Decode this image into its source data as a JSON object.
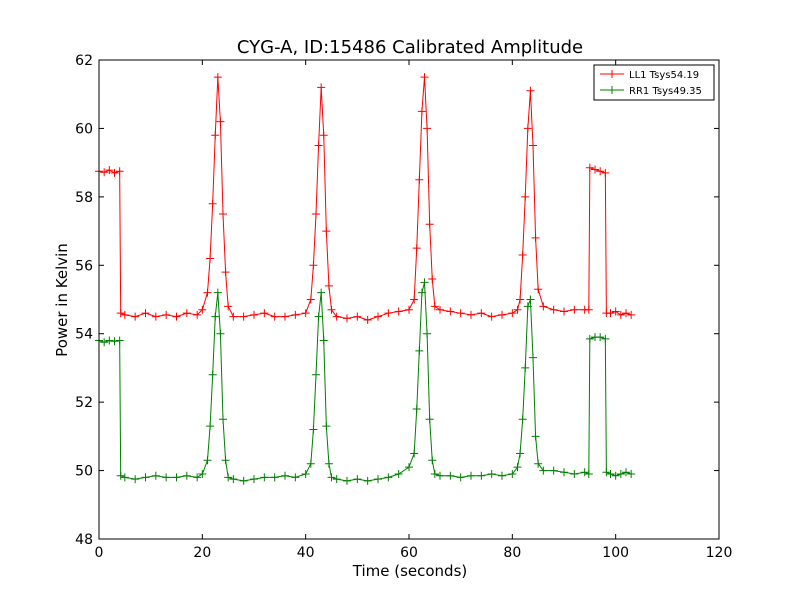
{
  "chart_data": {
    "type": "line",
    "title": "CYG-A, ID:15486 Calibrated Amplitude",
    "xlabel": "Time (seconds)",
    "ylabel": "Power in Kelvin",
    "xlim": [
      0,
      120
    ],
    "ylim": [
      48,
      62
    ],
    "xticks": [
      0,
      20,
      40,
      60,
      80,
      100,
      120
    ],
    "yticks": [
      48,
      50,
      52,
      54,
      56,
      58,
      60,
      62
    ],
    "grid": false,
    "legend": "top-right",
    "marker": "+",
    "series": [
      {
        "name": "LL1 Tsys54.19",
        "color": "#ff0000",
        "x": [
          0,
          1,
          2,
          3,
          4,
          4.2,
          5,
          7,
          9,
          11,
          13,
          15,
          17,
          19,
          20,
          21,
          21.5,
          22,
          22.5,
          23,
          23.5,
          24,
          24.5,
          25,
          26,
          28,
          30,
          32,
          34,
          36,
          38,
          40,
          41,
          41.5,
          42,
          42.5,
          43,
          43.5,
          44,
          44.5,
          45,
          46,
          48,
          50,
          52,
          54,
          56,
          58,
          60,
          61,
          61.5,
          62,
          62.5,
          63,
          63.5,
          64,
          64.5,
          65,
          66,
          68,
          70,
          72,
          74,
          76,
          78,
          80,
          81,
          81.5,
          82,
          82.5,
          83,
          83.5,
          84,
          84.5,
          85,
          86,
          88,
          90,
          92,
          94,
          94.8,
          95,
          96,
          97,
          98,
          98.2,
          99,
          100,
          101,
          102,
          103
        ],
        "values": [
          58.75,
          58.72,
          58.78,
          58.7,
          58.75,
          54.6,
          54.55,
          54.5,
          54.6,
          54.5,
          54.55,
          54.5,
          54.6,
          54.55,
          54.7,
          55.2,
          56.2,
          57.8,
          59.8,
          61.5,
          60.2,
          57.5,
          55.8,
          54.8,
          54.5,
          54.5,
          54.55,
          54.6,
          54.5,
          54.5,
          54.55,
          54.6,
          55.0,
          56.0,
          57.5,
          59.5,
          61.2,
          59.8,
          57.0,
          55.4,
          54.7,
          54.5,
          54.45,
          54.5,
          54.4,
          54.5,
          54.6,
          54.65,
          54.7,
          55.0,
          56.5,
          58.5,
          60.5,
          61.5,
          60.0,
          57.2,
          55.6,
          54.8,
          54.7,
          54.65,
          54.6,
          54.55,
          54.6,
          54.5,
          54.55,
          54.6,
          54.7,
          55.0,
          56.3,
          58.0,
          60.0,
          61.1,
          59.5,
          56.8,
          55.3,
          54.8,
          54.7,
          54.65,
          54.7,
          54.7,
          54.7,
          58.85,
          58.8,
          58.75,
          58.7,
          54.6,
          54.6,
          54.65,
          54.55,
          54.6,
          54.55
        ]
      },
      {
        "name": "RR1 Tsys49.35",
        "color": "#007f00",
        "x": [
          0,
          1,
          2,
          3,
          4,
          4.2,
          5,
          7,
          9,
          11,
          13,
          15,
          17,
          19,
          20,
          21,
          21.5,
          22,
          22.5,
          23,
          23.5,
          24,
          24.5,
          25,
          26,
          28,
          30,
          32,
          34,
          36,
          38,
          40,
          41,
          41.5,
          42,
          42.5,
          43,
          43.5,
          44,
          44.5,
          45,
          46,
          48,
          50,
          52,
          54,
          56,
          58,
          60,
          61,
          61.5,
          62,
          62.5,
          63,
          63.5,
          64,
          64.5,
          65,
          66,
          68,
          70,
          72,
          74,
          76,
          78,
          80,
          81,
          81.5,
          82,
          82.5,
          83,
          83.5,
          84,
          84.5,
          85,
          86,
          88,
          90,
          92,
          94,
          94.8,
          95,
          96,
          97,
          98,
          98.2,
          99,
          100,
          101,
          102,
          103
        ],
        "values": [
          53.8,
          53.75,
          53.8,
          53.78,
          53.8,
          49.85,
          49.8,
          49.75,
          49.8,
          49.85,
          49.8,
          49.8,
          49.85,
          49.8,
          49.9,
          50.3,
          51.3,
          52.8,
          54.5,
          55.2,
          54.0,
          51.5,
          50.3,
          49.8,
          49.75,
          49.7,
          49.75,
          49.8,
          49.8,
          49.85,
          49.8,
          49.9,
          50.2,
          51.2,
          52.8,
          54.5,
          55.2,
          53.8,
          51.3,
          50.2,
          49.8,
          49.75,
          49.7,
          49.75,
          49.7,
          49.75,
          49.8,
          49.9,
          50.1,
          50.5,
          51.8,
          53.5,
          55.2,
          55.5,
          54.0,
          51.5,
          50.3,
          49.9,
          49.85,
          49.85,
          49.8,
          49.85,
          49.85,
          49.9,
          49.85,
          49.9,
          50.1,
          50.5,
          51.5,
          53.0,
          54.8,
          55.0,
          53.3,
          51.0,
          50.2,
          50.0,
          50.0,
          49.95,
          49.9,
          49.95,
          49.9,
          53.85,
          53.9,
          53.9,
          53.85,
          49.95,
          49.9,
          49.85,
          49.9,
          49.95,
          49.9
        ]
      }
    ]
  }
}
